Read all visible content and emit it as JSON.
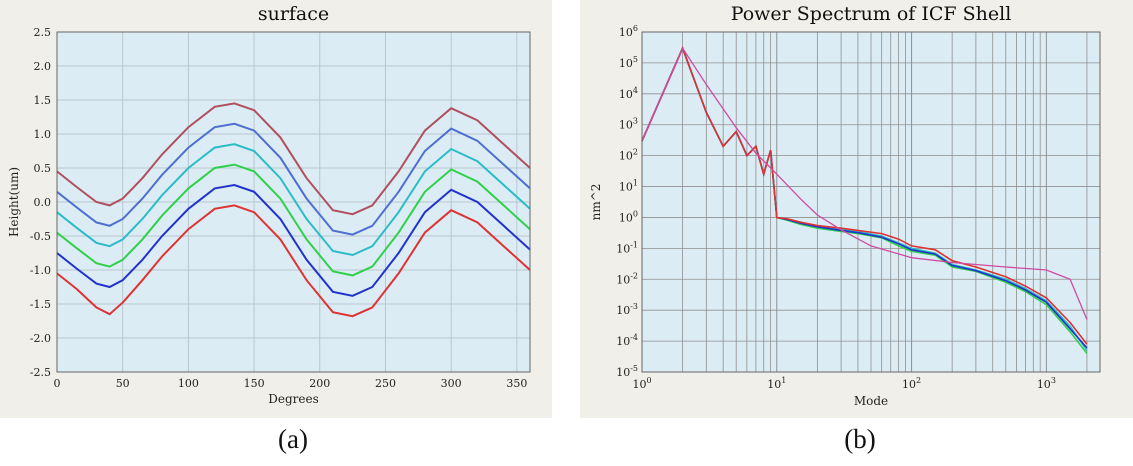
{
  "chart_data": [
    {
      "type": "line",
      "title": "surface",
      "xlabel": "Degrees",
      "ylabel": "Height(um)",
      "xlim": [
        0,
        360
      ],
      "ylim": [
        -2.5,
        2.5
      ],
      "xticks": [
        "0",
        "50",
        "100",
        "150",
        "200",
        "250",
        "300",
        "350"
      ],
      "yticks": [
        "-2.5",
        "-2.0",
        "-1.5",
        "-1.0",
        "-0.5",
        "0.0",
        "0.5",
        "1.0",
        "1.5",
        "2.0",
        "2.5"
      ],
      "grid": true,
      "caption": "(a)",
      "colors": {
        "plot_bg": "#dcecf5",
        "frame_bg": "#f1efe9",
        "grid": "#b9c6cf"
      },
      "series": [
        {
          "color": "#b0505e",
          "x": [
            0,
            15,
            30,
            40,
            50,
            65,
            80,
            100,
            120,
            135,
            150,
            170,
            190,
            210,
            225,
            240,
            260,
            280,
            300,
            320,
            340,
            360
          ],
          "y": [
            0.45,
            0.22,
            0.0,
            -0.05,
            0.05,
            0.35,
            0.7,
            1.1,
            1.4,
            1.45,
            1.35,
            0.95,
            0.35,
            -0.12,
            -0.18,
            -0.05,
            0.45,
            1.05,
            1.38,
            1.2,
            0.85,
            0.5
          ]
        },
        {
          "color": "#4d6fcf",
          "x": [
            0,
            15,
            30,
            40,
            50,
            65,
            80,
            100,
            120,
            135,
            150,
            170,
            190,
            210,
            225,
            240,
            260,
            280,
            300,
            320,
            340,
            360
          ],
          "y": [
            0.15,
            -0.08,
            -0.3,
            -0.35,
            -0.25,
            0.05,
            0.4,
            0.8,
            1.1,
            1.15,
            1.05,
            0.65,
            0.05,
            -0.42,
            -0.48,
            -0.35,
            0.15,
            0.75,
            1.08,
            0.9,
            0.55,
            0.2
          ]
        },
        {
          "color": "#2bbcc7",
          "x": [
            0,
            15,
            30,
            40,
            50,
            65,
            80,
            100,
            120,
            135,
            150,
            170,
            190,
            210,
            225,
            240,
            260,
            280,
            300,
            320,
            340,
            360
          ],
          "y": [
            -0.15,
            -0.38,
            -0.6,
            -0.65,
            -0.55,
            -0.25,
            0.1,
            0.5,
            0.8,
            0.85,
            0.75,
            0.35,
            -0.25,
            -0.72,
            -0.78,
            -0.65,
            -0.15,
            0.45,
            0.78,
            0.6,
            0.25,
            -0.1
          ]
        },
        {
          "color": "#2fd14a",
          "x": [
            0,
            15,
            30,
            40,
            50,
            65,
            80,
            100,
            120,
            135,
            150,
            170,
            190,
            210,
            225,
            240,
            260,
            280,
            300,
            320,
            340,
            360
          ],
          "y": [
            -0.45,
            -0.68,
            -0.9,
            -0.95,
            -0.85,
            -0.55,
            -0.2,
            0.2,
            0.5,
            0.55,
            0.45,
            0.05,
            -0.55,
            -1.02,
            -1.08,
            -0.95,
            -0.45,
            0.15,
            0.48,
            0.3,
            -0.05,
            -0.4
          ]
        },
        {
          "color": "#2233cc",
          "x": [
            0,
            15,
            30,
            40,
            50,
            65,
            80,
            100,
            120,
            135,
            150,
            170,
            190,
            210,
            225,
            240,
            260,
            280,
            300,
            320,
            340,
            360
          ],
          "y": [
            -0.75,
            -0.98,
            -1.2,
            -1.25,
            -1.15,
            -0.85,
            -0.5,
            -0.1,
            0.2,
            0.25,
            0.15,
            -0.25,
            -0.85,
            -1.32,
            -1.38,
            -1.25,
            -0.75,
            -0.15,
            0.18,
            0.0,
            -0.35,
            -0.7
          ]
        },
        {
          "color": "#dd3333",
          "x": [
            0,
            15,
            30,
            40,
            50,
            65,
            80,
            100,
            120,
            135,
            150,
            170,
            190,
            210,
            225,
            240,
            260,
            280,
            300,
            320,
            340,
            360
          ],
          "y": [
            -1.05,
            -1.28,
            -1.55,
            -1.65,
            -1.48,
            -1.15,
            -0.8,
            -0.4,
            -0.1,
            -0.05,
            -0.15,
            -0.55,
            -1.15,
            -1.62,
            -1.68,
            -1.55,
            -1.05,
            -0.45,
            -0.12,
            -0.3,
            -0.65,
            -1.0
          ]
        }
      ]
    },
    {
      "type": "line",
      "title": "Power Spectrum of ICF Shell",
      "xlabel": "Mode",
      "ylabel": "nm^2",
      "xscale": "log",
      "yscale": "log",
      "xlim": [
        1,
        2500
      ],
      "ylim": [
        1e-05,
        1000000.0
      ],
      "xticks": [
        {
          "base": "10",
          "exp": "0",
          "v": 1
        },
        {
          "base": "10",
          "exp": "1",
          "v": 10
        },
        {
          "base": "10",
          "exp": "2",
          "v": 100
        },
        {
          "base": "10",
          "exp": "3",
          "v": 1000
        }
      ],
      "yticks": [
        {
          "base": "10",
          "exp": "6",
          "v": 1000000.0
        },
        {
          "base": "10",
          "exp": "5",
          "v": 100000.0
        },
        {
          "base": "10",
          "exp": "4",
          "v": 10000.0
        },
        {
          "base": "10",
          "exp": "3",
          "v": 1000.0
        },
        {
          "base": "10",
          "exp": "2",
          "v": 100.0
        },
        {
          "base": "10",
          "exp": "1",
          "v": 10
        },
        {
          "base": "10",
          "exp": "0",
          "v": 1
        },
        {
          "base": "10",
          "exp": "-1",
          "v": 0.1
        },
        {
          "base": "10",
          "exp": "-2",
          "v": 0.01
        },
        {
          "base": "10",
          "exp": "-3",
          "v": 0.001
        },
        {
          "base": "10",
          "exp": "-4",
          "v": 0.0001
        },
        {
          "base": "10",
          "exp": "-5",
          "v": 1e-05
        }
      ],
      "grid": true,
      "caption": "(b)",
      "colors": {
        "plot_bg": "#dcecf5",
        "frame_bg": "#f1efe9",
        "grid": "#8f8f8f"
      },
      "series": [
        {
          "color": "#2bbcc7",
          "x": [
            1,
            2,
            3,
            4,
            5,
            6,
            7,
            8,
            9,
            10,
            12,
            15,
            20,
            30,
            40,
            60,
            80,
            100,
            150,
            200,
            300,
            500,
            700,
            1000,
            1500,
            2000
          ],
          "y": [
            300,
            300000,
            2500,
            200,
            600,
            100,
            200,
            25,
            150,
            1.0,
            0.9,
            0.7,
            0.5,
            0.4,
            0.35,
            0.25,
            0.15,
            0.1,
            0.07,
            0.03,
            0.02,
            0.01,
            0.005,
            0.002,
            0.0003,
            5e-05
          ]
        },
        {
          "color": "#2fd14a",
          "x": [
            1,
            2,
            3,
            4,
            5,
            6,
            7,
            8,
            9,
            10,
            12,
            15,
            20,
            30,
            40,
            60,
            80,
            100,
            150,
            200,
            300,
            500,
            700,
            1000,
            1500,
            2000
          ],
          "y": [
            300,
            300000,
            2500,
            200,
            600,
            100,
            200,
            25,
            150,
            1.0,
            0.8,
            0.6,
            0.45,
            0.35,
            0.3,
            0.22,
            0.12,
            0.08,
            0.06,
            0.025,
            0.018,
            0.008,
            0.004,
            0.0015,
            0.0002,
            4e-05
          ]
        },
        {
          "color": "#2233cc",
          "x": [
            1,
            2,
            3,
            4,
            5,
            6,
            7,
            8,
            9,
            10,
            12,
            15,
            20,
            30,
            40,
            60,
            80,
            100,
            150,
            200,
            300,
            500,
            700,
            1000,
            1500,
            2000
          ],
          "y": [
            300,
            300000,
            2500,
            200,
            600,
            100,
            200,
            25,
            150,
            1.0,
            0.85,
            0.65,
            0.5,
            0.38,
            0.32,
            0.23,
            0.14,
            0.09,
            0.065,
            0.028,
            0.019,
            0.009,
            0.0045,
            0.0018,
            0.00025,
            6e-05
          ]
        },
        {
          "color": "#dd3333",
          "x": [
            1,
            2,
            3,
            4,
            5,
            6,
            7,
            8,
            9,
            10,
            12,
            15,
            20,
            30,
            40,
            60,
            80,
            100,
            150,
            200,
            300,
            500,
            700,
            1000,
            1500,
            2000
          ],
          "y": [
            300,
            300000,
            2500,
            200,
            600,
            100,
            200,
            25,
            150,
            1.0,
            0.9,
            0.7,
            0.55,
            0.45,
            0.38,
            0.3,
            0.2,
            0.12,
            0.09,
            0.04,
            0.025,
            0.012,
            0.006,
            0.0025,
            0.0004,
            8e-05
          ]
        },
        {
          "color": "#d04aa0",
          "x": [
            1,
            2,
            3,
            5,
            7,
            10,
            15,
            20,
            30,
            50,
            100,
            200,
            300,
            500,
            1000,
            1500,
            2000
          ],
          "y": [
            300,
            300000,
            20000,
            800,
            120,
            25,
            4,
            1.2,
            0.4,
            0.12,
            0.05,
            0.035,
            0.03,
            0.025,
            0.02,
            0.01,
            0.0005
          ]
        }
      ]
    }
  ]
}
